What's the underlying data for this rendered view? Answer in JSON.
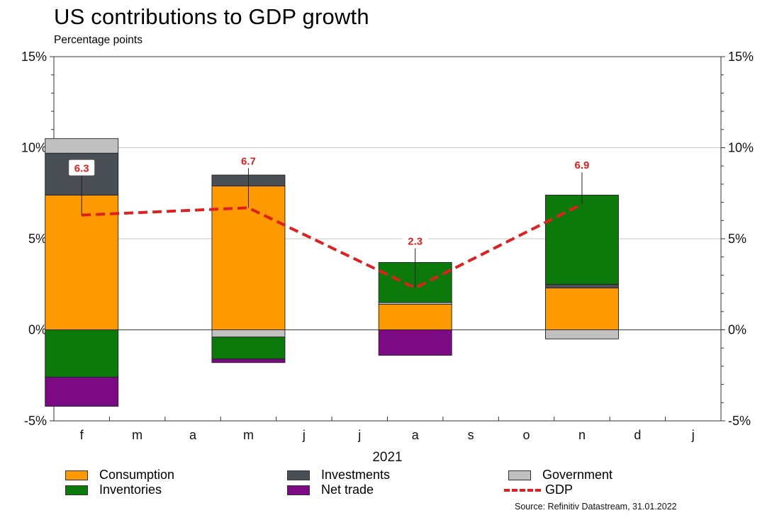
{
  "chart_data": {
    "type": "bar",
    "title": "US contributions to GDP growth",
    "subtitle": "Percentage points",
    "xlabel": "2021",
    "x_ticks": [
      "f",
      "m",
      "a",
      "m",
      "j",
      "j",
      "a",
      "s",
      "o",
      "n",
      "d",
      "j"
    ],
    "y_tick_labels": [
      "15%",
      "10%",
      "5%",
      "0%",
      "-5%"
    ],
    "y_ticks": [
      15,
      10,
      5,
      0,
      -5
    ],
    "ylim": [
      -5,
      15
    ],
    "grid": true,
    "stacked": true,
    "bar_periods": [
      "f",
      "m",
      "a",
      "n"
    ],
    "series": [
      {
        "name": "Consumption",
        "color": "#ff9900",
        "values": [
          7.4,
          7.9,
          1.4,
          2.3
        ]
      },
      {
        "name": "Investments",
        "color": "#4a4f55",
        "values": [
          2.3,
          0.6,
          0.0,
          0.2
        ]
      },
      {
        "name": "Government",
        "color": "#c0c0c0",
        "values": [
          0.8,
          -0.4,
          0.1,
          -0.5
        ]
      },
      {
        "name": "Inventories",
        "color": "#0b7a0b",
        "values": [
          -2.6,
          -1.2,
          2.2,
          4.9
        ]
      },
      {
        "name": "Net trade",
        "color": "#7b0a84",
        "values": [
          -1.6,
          -0.2,
          -1.4,
          0.0
        ]
      }
    ],
    "gdp": {
      "name": "GDP",
      "color": "#e02020",
      "values": [
        6.3,
        6.7,
        2.3,
        6.9
      ],
      "labels": [
        "6.3",
        "6.7",
        "2.3",
        "6.9"
      ]
    },
    "legend_position": "bottom",
    "source": "Source: Refinitiv Datastream, 31.01.2022"
  }
}
